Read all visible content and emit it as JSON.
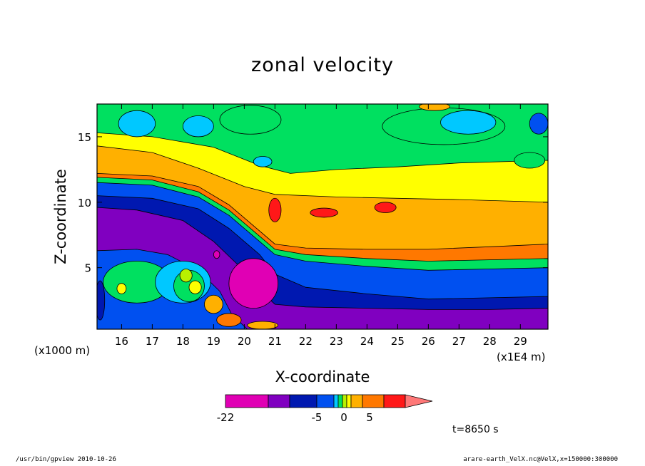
{
  "figure": {
    "footer_left": "/usr/bin/gpview   2010-10-26",
    "footer_right": "arare-earth_VelX.nc@VelX,x=150000:300000",
    "time_label": "t=8650 s"
  },
  "chart_data": {
    "type": "heatmap",
    "title": "zonal velocity",
    "xlabel": "X-coordinate",
    "ylabel": "Z-coordinate",
    "x_unit_left": "(x1000 m)",
    "x_unit_right": "(x1E4 m)",
    "xlim": [
      15.2,
      29.9
    ],
    "ylim": [
      0.3,
      17.5
    ],
    "x_ticks": [
      16,
      17,
      18,
      19,
      20,
      21,
      22,
      23,
      24,
      25,
      26,
      27,
      28,
      29
    ],
    "y_ticks": [
      5,
      10,
      15
    ],
    "colorbar": {
      "colors": [
        "#e000b4",
        "#8000c0",
        "#0018b0",
        "#0050f0",
        "#00c8ff",
        "#00e060",
        "#b8f000",
        "#ffff00",
        "#ffb000",
        "#ff7800",
        "#ff1818",
        "#ff7878"
      ],
      "labels": [
        "-22",
        "-5",
        "0",
        "5"
      ]
    },
    "layers": [
      {
        "name": "top-band",
        "color": "#ffff00",
        "boundary": [
          [
            15.2,
            15.3
          ],
          [
            17,
            15.0
          ],
          [
            19,
            14.2
          ],
          [
            20.5,
            12.8
          ],
          [
            21.5,
            12.2
          ],
          [
            23,
            12.5
          ],
          [
            25,
            12.7
          ],
          [
            27,
            13.0
          ],
          [
            29.9,
            13.2
          ]
        ]
      },
      {
        "name": "orange",
        "color": "#ffb000",
        "boundary": [
          [
            15.2,
            14.3
          ],
          [
            17,
            13.8
          ],
          [
            18.5,
            12.6
          ],
          [
            20,
            11.2
          ],
          [
            21,
            10.6
          ],
          [
            23,
            10.4
          ],
          [
            25,
            10.3
          ],
          [
            27,
            10.2
          ],
          [
            29.9,
            10.0
          ]
        ]
      },
      {
        "name": "dark-orange",
        "color": "#ff7800",
        "boundary": [
          [
            15.2,
            12.2
          ],
          [
            17,
            12.0
          ],
          [
            18.5,
            11.2
          ],
          [
            19.5,
            9.8
          ],
          [
            20.5,
            7.8
          ],
          [
            21,
            6.8
          ],
          [
            22,
            6.5
          ],
          [
            24,
            6.4
          ],
          [
            26,
            6.4
          ],
          [
            28,
            6.6
          ],
          [
            29.9,
            6.8
          ]
        ]
      },
      {
        "name": "green-band",
        "color": "#00e060",
        "boundary": [
          [
            15.2,
            11.9
          ],
          [
            17,
            11.7
          ],
          [
            18.5,
            10.8
          ],
          [
            19.5,
            9.4
          ],
          [
            20.5,
            7.4
          ],
          [
            21,
            6.4
          ],
          [
            22,
            6.0
          ],
          [
            24,
            5.7
          ],
          [
            26,
            5.5
          ],
          [
            28,
            5.6
          ],
          [
            29.9,
            5.7
          ]
        ]
      },
      {
        "name": "blue",
        "color": "#0050f0",
        "boundary": [
          [
            15.2,
            11.5
          ],
          [
            17,
            11.3
          ],
          [
            18.5,
            10.4
          ],
          [
            19.5,
            9.0
          ],
          [
            20.5,
            7.0
          ],
          [
            21,
            6.0
          ],
          [
            22,
            5.5
          ],
          [
            24,
            5.1
          ],
          [
            26,
            4.8
          ],
          [
            28,
            4.9
          ],
          [
            29.9,
            5.0
          ]
        ]
      },
      {
        "name": "navy",
        "color": "#0018b0",
        "boundary": [
          [
            15.2,
            10.5
          ],
          [
            17,
            10.3
          ],
          [
            18.5,
            9.5
          ],
          [
            19.5,
            8.0
          ],
          [
            20.5,
            6.0
          ],
          [
            21,
            4.5
          ],
          [
            22,
            3.5
          ],
          [
            24,
            3.0
          ],
          [
            26,
            2.6
          ],
          [
            28,
            2.7
          ],
          [
            29.9,
            2.8
          ]
        ]
      },
      {
        "name": "purple",
        "color": "#8000c0",
        "boundary": [
          [
            15.2,
            9.6
          ],
          [
            16.5,
            9.4
          ],
          [
            18,
            8.6
          ],
          [
            19,
            7.0
          ],
          [
            19.8,
            5.2
          ],
          [
            20.4,
            3.5
          ],
          [
            21,
            2.2
          ],
          [
            22,
            2.0
          ],
          [
            24,
            1.9
          ],
          [
            26,
            1.8
          ],
          [
            28,
            1.8
          ],
          [
            29.9,
            1.9
          ]
        ]
      },
      {
        "name": "lower-blue",
        "color": "#0050f0",
        "boundary": [
          [
            15.2,
            6.3
          ],
          [
            16.5,
            6.4
          ],
          [
            17.5,
            6.0
          ],
          [
            18.5,
            4.8
          ],
          [
            19.2,
            3.2
          ],
          [
            19.6,
            1.4
          ],
          [
            20.1,
            0.3
          ]
        ]
      }
    ],
    "blobs": [
      {
        "color": "#00c8ff",
        "x": 16.5,
        "y": 16.0,
        "rx": 0.6,
        "ry": 1.0
      },
      {
        "color": "#00c8ff",
        "x": 18.5,
        "y": 15.8,
        "rx": 0.5,
        "ry": 0.8
      },
      {
        "color": "#00c8ff",
        "x": 20.6,
        "y": 13.1,
        "rx": 0.3,
        "ry": 0.4
      },
      {
        "color": "#00e060",
        "x": 20.2,
        "y": 16.3,
        "rx": 1.0,
        "ry": 1.1
      },
      {
        "color": "#00e060",
        "x": 26.5,
        "y": 15.8,
        "rx": 2.0,
        "ry": 1.4
      },
      {
        "color": "#00c8ff",
        "x": 27.3,
        "y": 16.1,
        "rx": 0.9,
        "ry": 0.9
      },
      {
        "color": "#0050f0",
        "x": 29.6,
        "y": 16.0,
        "rx": 0.3,
        "ry": 0.8
      },
      {
        "color": "#ffb000",
        "x": 26.2,
        "y": 17.3,
        "rx": 0.5,
        "ry": 0.3
      },
      {
        "color": "#00e060",
        "x": 29.3,
        "y": 13.2,
        "rx": 0.5,
        "ry": 0.6
      },
      {
        "color": "#ff1818",
        "x": 21.0,
        "y": 9.4,
        "rx": 0.2,
        "ry": 0.9
      },
      {
        "color": "#ff1818",
        "x": 22.6,
        "y": 9.2,
        "rx": 0.45,
        "ry": 0.35
      },
      {
        "color": "#ff1818",
        "x": 24.6,
        "y": 9.6,
        "rx": 0.35,
        "ry": 0.4
      },
      {
        "color": "#00e060",
        "x": 16.5,
        "y": 3.9,
        "rx": 1.1,
        "ry": 1.6
      },
      {
        "color": "#00c8ff",
        "x": 18.0,
        "y": 3.9,
        "rx": 0.9,
        "ry": 1.6
      },
      {
        "color": "#00e060",
        "x": 18.2,
        "y": 3.6,
        "rx": 0.5,
        "ry": 1.2
      },
      {
        "color": "#b8f000",
        "x": 18.1,
        "y": 4.4,
        "rx": 0.2,
        "ry": 0.5
      },
      {
        "color": "#ffff00",
        "x": 16.0,
        "y": 3.4,
        "rx": 0.15,
        "ry": 0.4
      },
      {
        "color": "#ffff00",
        "x": 18.4,
        "y": 3.5,
        "rx": 0.2,
        "ry": 0.5
      },
      {
        "color": "#ffb000",
        "x": 19.0,
        "y": 2.2,
        "rx": 0.3,
        "ry": 0.7
      },
      {
        "color": "#ff7800",
        "x": 19.5,
        "y": 1.0,
        "rx": 0.4,
        "ry": 0.5
      },
      {
        "color": "#ffb000",
        "x": 20.6,
        "y": 0.6,
        "rx": 0.5,
        "ry": 0.3
      },
      {
        "color": "#e000b4",
        "x": 20.3,
        "y": 3.8,
        "rx": 0.8,
        "ry": 1.9
      },
      {
        "color": "#e000b4",
        "x": 19.1,
        "y": 6.0,
        "rx": 0.1,
        "ry": 0.3
      },
      {
        "color": "#0018b0",
        "x": 15.3,
        "y": 2.5,
        "rx": 0.15,
        "ry": 1.5
      }
    ]
  }
}
